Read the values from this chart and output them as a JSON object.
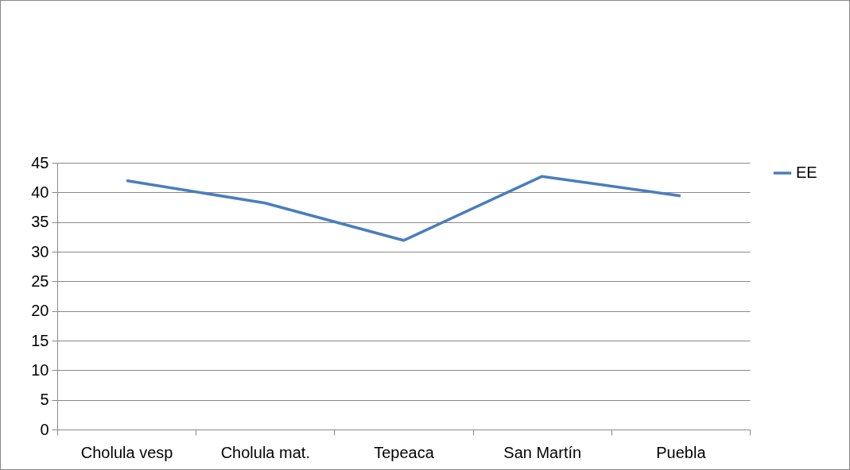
{
  "chart_data": {
    "type": "line",
    "categories": [
      "Cholula vesp",
      "Cholula mat.",
      "Tepeaca",
      "San Martín",
      "Puebla"
    ],
    "series": [
      {
        "name": "EE",
        "color": "#4a7ebb",
        "values": [
          42,
          38.2,
          31.9,
          42.7,
          39.4
        ]
      }
    ],
    "ylim": [
      0,
      45
    ],
    "yticks": [
      0,
      5,
      10,
      15,
      20,
      25,
      30,
      35,
      40,
      45
    ],
    "grid": "y",
    "legend": "right",
    "marker": "none",
    "line_style": "solid"
  }
}
